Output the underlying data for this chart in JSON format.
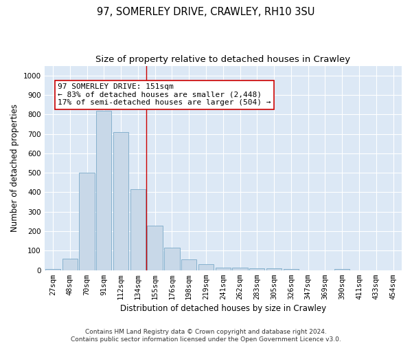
{
  "title": "97, SOMERLEY DRIVE, CRAWLEY, RH10 3SU",
  "subtitle": "Size of property relative to detached houses in Crawley",
  "xlabel": "Distribution of detached houses by size in Crawley",
  "ylabel": "Number of detached properties",
  "bar_labels": [
    "27sqm",
    "48sqm",
    "70sqm",
    "91sqm",
    "112sqm",
    "134sqm",
    "155sqm",
    "176sqm",
    "198sqm",
    "219sqm",
    "241sqm",
    "262sqm",
    "283sqm",
    "305sqm",
    "326sqm",
    "347sqm",
    "369sqm",
    "390sqm",
    "411sqm",
    "433sqm",
    "454sqm"
  ],
  "bar_values": [
    5,
    60,
    500,
    820,
    710,
    415,
    230,
    115,
    57,
    30,
    14,
    12,
    10,
    8,
    5,
    0,
    0,
    5,
    0,
    0,
    0
  ],
  "bar_color": "#c8d8e8",
  "bar_edge_color": "#7aaac8",
  "vline_x": 5.5,
  "vline_color": "#cc0000",
  "annotation_text": "97 SOMERLEY DRIVE: 151sqm\n← 83% of detached houses are smaller (2,448)\n17% of semi-detached houses are larger (504) →",
  "annotation_box_color": "#ffffff",
  "annotation_box_edge": "#cc0000",
  "ylim": [
    0,
    1050
  ],
  "yticks": [
    0,
    100,
    200,
    300,
    400,
    500,
    600,
    700,
    800,
    900,
    1000
  ],
  "plot_bg_color": "#dce8f5",
  "footer": "Contains HM Land Registry data © Crown copyright and database right 2024.\nContains public sector information licensed under the Open Government Licence v3.0.",
  "title_fontsize": 10.5,
  "subtitle_fontsize": 9.5,
  "axis_label_fontsize": 8.5,
  "tick_fontsize": 7.5,
  "annotation_fontsize": 8
}
